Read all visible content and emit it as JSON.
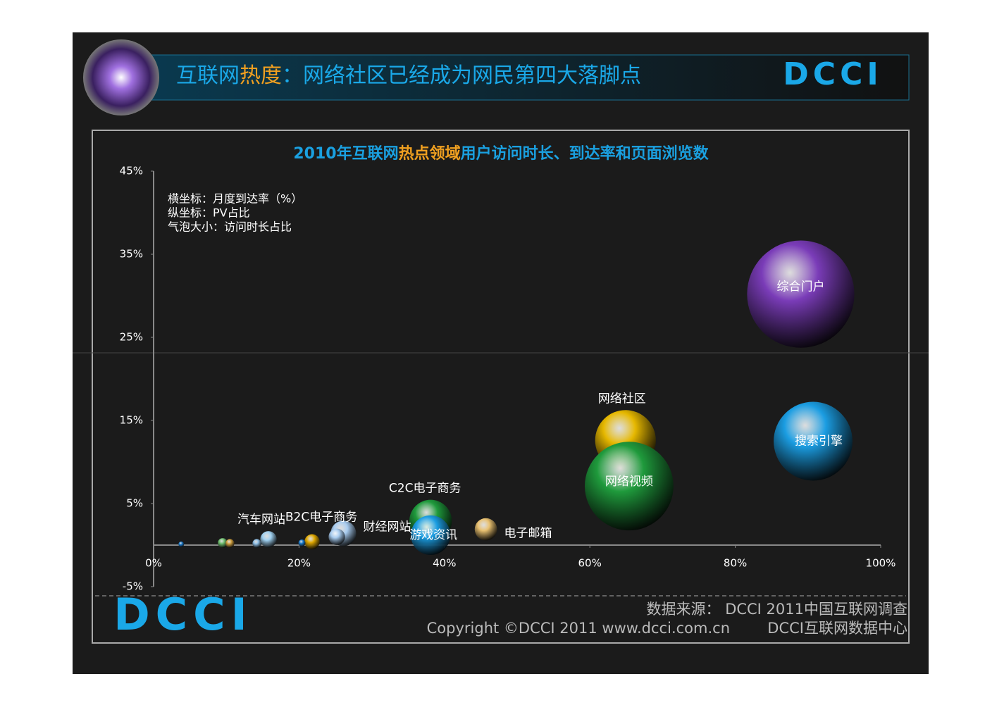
{
  "header": {
    "title": [
      "互联网",
      "热度",
      "：网络社区已经成为网民第四大落脚点"
    ],
    "logo": "DCCI"
  },
  "chart_data": {
    "type": "bubble",
    "title": [
      "2010年互联网",
      "热点领域",
      "用户访问时长、到达率和页面浏览数"
    ],
    "annotations": [
      "横坐标：月度到达率（%）",
      "纵坐标：PV占比",
      "气泡大小：访问时长占比"
    ],
    "xlim": [
      0,
      100
    ],
    "xticks": [
      {
        "value": 0,
        "label": "0%"
      },
      {
        "value": 20,
        "label": "20%"
      },
      {
        "value": 40,
        "label": "40%"
      },
      {
        "value": 60,
        "label": "60%"
      },
      {
        "value": 80,
        "label": "80%"
      },
      {
        "value": 100,
        "label": "100%"
      }
    ],
    "ylim": [
      -5,
      45
    ],
    "yticks": [
      {
        "value": 45,
        "label": "45%"
      },
      {
        "value": 35,
        "label": "35%"
      },
      {
        "value": 25,
        "label": "25%"
      },
      {
        "value": 15,
        "label": "15%"
      },
      {
        "value": 5,
        "label": "5%"
      },
      {
        "value": -5,
        "label": "-5%"
      }
    ],
    "series": [
      {
        "name": "综合门户",
        "color": "#7a3cb8",
        "x": [
          89
        ],
        "values": [
          30.2
        ],
        "sizes": [
          30
        ]
      },
      {
        "name": "搜索引擎",
        "color": "#1b9de2",
        "x": [
          90.7
        ],
        "values": [
          12.5
        ],
        "sizes": [
          16.2
        ]
      },
      {
        "name": "网络社区",
        "color": "#e6b800",
        "x": [
          64.9
        ],
        "values": [
          12.6
        ],
        "sizes": [
          9.6
        ]
      },
      {
        "name": "网络视频",
        "color": "#1f9a3c",
        "x": [
          65.4
        ],
        "values": [
          7.1
        ],
        "sizes": [
          20.5
        ]
      },
      {
        "name": "C2C电子商务",
        "color": "#1f9a3c",
        "x": [
          38.1
        ],
        "values": [
          2.9
        ],
        "sizes": [
          4.7
        ]
      },
      {
        "name": "游戏资讯",
        "color": "#1b9de2",
        "x": [
          38.1
        ],
        "values": [
          1.2
        ],
        "sizes": [
          4.1
        ]
      },
      {
        "name": "电子邮箱",
        "color": "#e8c070",
        "x": [
          45.7
        ],
        "values": [
          1.9
        ],
        "sizes": [
          1.3
        ]
      },
      {
        "name": "财经网站",
        "color": "#a8ccf0",
        "x": [
          26.1
        ],
        "values": [
          1.4
        ],
        "sizes": [
          1.7
        ]
      },
      {
        "name": "B2C电子商务",
        "color": "#a8ccf0",
        "x": [
          25.2
        ],
        "values": [
          1.0
        ],
        "sizes": [
          0.7
        ]
      },
      {
        "name": "汽车网站",
        "color": "#9fd0f0",
        "x": [
          15.8
        ],
        "values": [
          0.7
        ],
        "sizes": [
          0.7
        ]
      },
      {
        "name": null,
        "color": "#e0a800",
        "x": [
          21.8
        ],
        "values": [
          0.4
        ],
        "sizes": [
          0.6
        ]
      },
      {
        "name": null,
        "color": "#1b7dd0",
        "x": [
          20.4
        ],
        "values": [
          0.25
        ],
        "sizes": [
          0.13
        ]
      },
      {
        "name": null,
        "color": "#8fc0e8",
        "x": [
          14.2
        ],
        "values": [
          0.2
        ],
        "sizes": [
          0.2
        ]
      },
      {
        "name": null,
        "color": "#6fbf6f",
        "x": [
          9.5
        ],
        "values": [
          0.25
        ],
        "sizes": [
          0.25
        ]
      },
      {
        "name": null,
        "color": "#d0a040",
        "x": [
          10.5
        ],
        "values": [
          0.2
        ],
        "sizes": [
          0.2
        ]
      },
      {
        "name": null,
        "color": "#1b7dd0",
        "x": [
          3.8
        ],
        "values": [
          0.1
        ],
        "sizes": [
          0.08
        ]
      }
    ]
  },
  "footer": {
    "logo": "DCCI",
    "source": "数据来源： DCCI 2011中国互联网调查",
    "copyright": "Copyright ©DCCI 2011 www.dcci.com.cn",
    "org": "DCCI互联网数据中心"
  }
}
